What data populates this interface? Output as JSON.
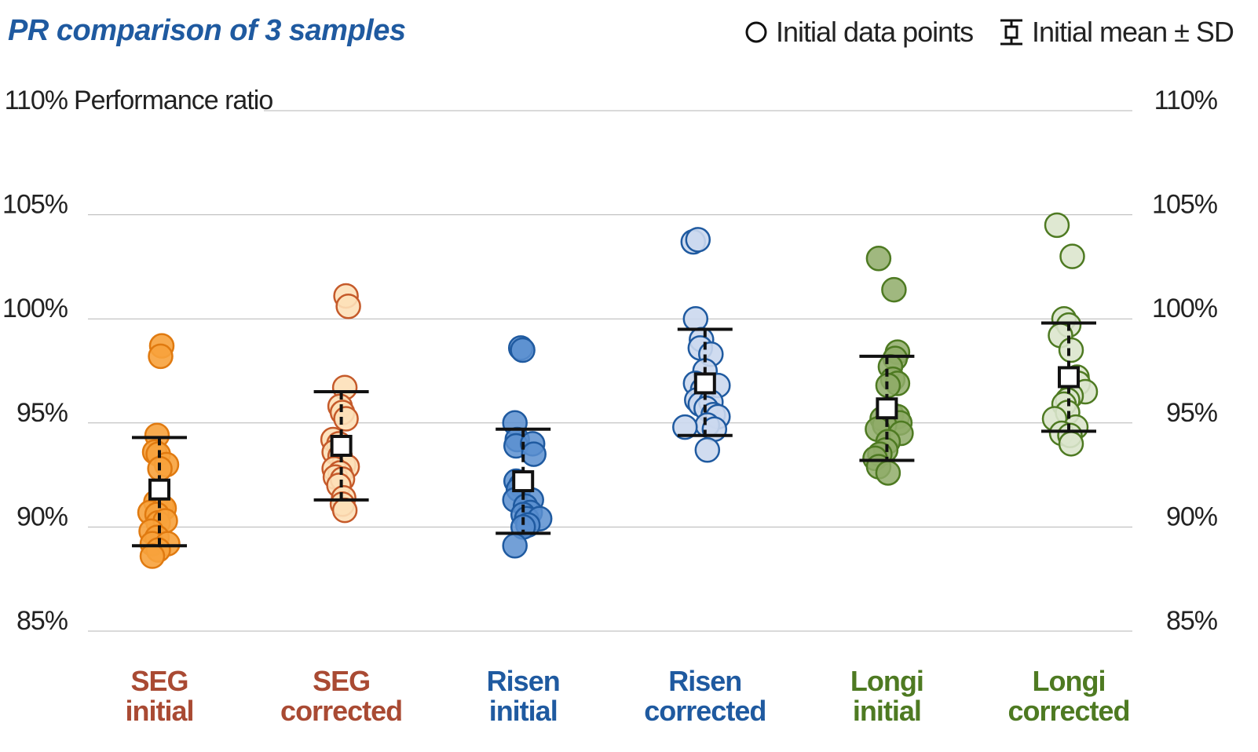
{
  "chart_data": {
    "type": "scatter",
    "title": "PR comparison of 3 samples",
    "ylabel": "Performance ratio",
    "ylim": [
      85,
      110
    ],
    "yticks": [
      {
        "value": 110,
        "label": "110%"
      },
      {
        "value": 105,
        "label": "105%"
      },
      {
        "value": 100,
        "label": "100%"
      },
      {
        "value": 95,
        "label": "95%"
      },
      {
        "value": 90,
        "label": "90%"
      },
      {
        "value": 85,
        "label": "85%"
      }
    ],
    "grid": true,
    "legend_position": "top-right",
    "legend": {
      "points_label": "Initial data points",
      "mean_label": "Initial mean ± SD"
    },
    "series": [
      {
        "label_line1": "SEG",
        "label_line2": "initial",
        "stroke": "#e07a10",
        "fill": "#f7a23c",
        "fill_opacity": 0.9,
        "text_color": "#a94a33",
        "mean": 91.8,
        "sd_upper": 94.3,
        "sd_lower": 89.1,
        "points": [
          {
            "dx": 0.1,
            "y": 98.7
          },
          {
            "dx": 0.05,
            "y": 98.2
          },
          {
            "dx": -0.1,
            "y": 94.4
          },
          {
            "dx": -0.2,
            "y": 93.6
          },
          {
            "dx": -0.05,
            "y": 93.5
          },
          {
            "dx": 0.3,
            "y": 93.0
          },
          {
            "dx": 0.02,
            "y": 92.8
          },
          {
            "dx": -0.15,
            "y": 91.2
          },
          {
            "dx": 0.1,
            "y": 91.0
          },
          {
            "dx": 0.2,
            "y": 90.9
          },
          {
            "dx": -0.4,
            "y": 90.7
          },
          {
            "dx": -0.1,
            "y": 90.6
          },
          {
            "dx": -0.05,
            "y": 90.2
          },
          {
            "dx": 0.25,
            "y": 90.3
          },
          {
            "dx": -0.35,
            "y": 89.8
          },
          {
            "dx": -0.1,
            "y": 89.5
          },
          {
            "dx": -0.3,
            "y": 89.2
          },
          {
            "dx": 0.35,
            "y": 89.2
          },
          {
            "dx": -0.05,
            "y": 88.9
          },
          {
            "dx": -0.3,
            "y": 88.6
          }
        ]
      },
      {
        "label_line1": "SEG",
        "label_line2": "corrected",
        "stroke": "#c55a2a",
        "fill": "#fde0b8",
        "fill_opacity": 0.9,
        "text_color": "#a94a33",
        "mean": 93.9,
        "sd_upper": 96.5,
        "sd_lower": 91.3,
        "points": [
          {
            "dx": 0.2,
            "y": 101.1
          },
          {
            "dx": 0.3,
            "y": 100.6
          },
          {
            "dx": 0.15,
            "y": 96.7
          },
          {
            "dx": -0.05,
            "y": 95.8
          },
          {
            "dx": 0.05,
            "y": 95.5
          },
          {
            "dx": 0.2,
            "y": 95.2
          },
          {
            "dx": -0.35,
            "y": 94.2
          },
          {
            "dx": -0.1,
            "y": 94.0
          },
          {
            "dx": -0.3,
            "y": 93.6
          },
          {
            "dx": -0.05,
            "y": 93.4
          },
          {
            "dx": 0.1,
            "y": 93.0
          },
          {
            "dx": 0.25,
            "y": 92.9
          },
          {
            "dx": -0.3,
            "y": 92.8
          },
          {
            "dx": -0.05,
            "y": 92.6
          },
          {
            "dx": -0.25,
            "y": 92.4
          },
          {
            "dx": 0.05,
            "y": 92.3
          },
          {
            "dx": -0.1,
            "y": 92.0
          },
          {
            "dx": 0.1,
            "y": 91.4
          },
          {
            "dx": 0.05,
            "y": 91.1
          },
          {
            "dx": 0.15,
            "y": 90.8
          }
        ]
      },
      {
        "label_line1": "Risen",
        "label_line2": "initial",
        "stroke": "#1f5aa0",
        "fill": "#5b8fd0",
        "fill_opacity": 0.85,
        "text_color": "#1f5aa0",
        "mean": 92.2,
        "sd_upper": 94.7,
        "sd_lower": 89.7,
        "points": [
          {
            "dx": -0.1,
            "y": 98.6
          },
          {
            "dx": -0.02,
            "y": 98.5
          },
          {
            "dx": -0.35,
            "y": 95.0
          },
          {
            "dx": -0.25,
            "y": 94.2
          },
          {
            "dx": -0.3,
            "y": 93.9
          },
          {
            "dx": 0.4,
            "y": 94.0
          },
          {
            "dx": 0.45,
            "y": 93.5
          },
          {
            "dx": -0.3,
            "y": 92.2
          },
          {
            "dx": -0.1,
            "y": 92.0
          },
          {
            "dx": -0.2,
            "y": 91.8
          },
          {
            "dx": 0.35,
            "y": 91.3
          },
          {
            "dx": -0.35,
            "y": 91.3
          },
          {
            "dx": 0.1,
            "y": 91.0
          },
          {
            "dx": 0.3,
            "y": 90.7
          },
          {
            "dx": 0.0,
            "y": 90.6
          },
          {
            "dx": 0.15,
            "y": 90.4
          },
          {
            "dx": 0.7,
            "y": 90.4
          },
          {
            "dx": 0.2,
            "y": 90.1
          },
          {
            "dx": 0.0,
            "y": 90.0
          },
          {
            "dx": -0.35,
            "y": 89.1
          }
        ]
      },
      {
        "label_line1": "Risen",
        "label_line2": "corrected",
        "stroke": "#1f5aa0",
        "fill": "#cbd8ee",
        "fill_opacity": 0.9,
        "text_color": "#1f5aa0",
        "mean": 96.9,
        "sd_upper": 99.5,
        "sd_lower": 94.4,
        "points": [
          {
            "dx": -0.5,
            "y": 103.7
          },
          {
            "dx": -0.3,
            "y": 103.8
          },
          {
            "dx": -0.4,
            "y": 100.0
          },
          {
            "dx": -0.15,
            "y": 99.0
          },
          {
            "dx": -0.2,
            "y": 98.6
          },
          {
            "dx": 0.25,
            "y": 98.3
          },
          {
            "dx": 0.0,
            "y": 97.5
          },
          {
            "dx": -0.4,
            "y": 96.9
          },
          {
            "dx": 0.55,
            "y": 96.8
          },
          {
            "dx": -0.1,
            "y": 96.6
          },
          {
            "dx": -0.35,
            "y": 96.1
          },
          {
            "dx": -0.2,
            "y": 95.9
          },
          {
            "dx": 0.25,
            "y": 96.0
          },
          {
            "dx": 0.05,
            "y": 95.7
          },
          {
            "dx": 0.35,
            "y": 95.4
          },
          {
            "dx": 0.55,
            "y": 95.3
          },
          {
            "dx": 0.1,
            "y": 94.9
          },
          {
            "dx": 0.4,
            "y": 94.7
          },
          {
            "dx": -0.85,
            "y": 94.8
          },
          {
            "dx": 0.1,
            "y": 93.7
          }
        ]
      },
      {
        "label_line1": "Longi",
        "label_line2": "initial",
        "stroke": "#4e7a22",
        "fill": "#8fab68",
        "fill_opacity": 0.85,
        "text_color": "#4e7a22",
        "mean": 95.7,
        "sd_upper": 98.2,
        "sd_lower": 93.2,
        "points": [
          {
            "dx": -0.35,
            "y": 102.9
          },
          {
            "dx": 0.3,
            "y": 101.4
          },
          {
            "dx": 0.45,
            "y": 98.4
          },
          {
            "dx": 0.35,
            "y": 98.1
          },
          {
            "dx": 0.15,
            "y": 97.7
          },
          {
            "dx": 0.25,
            "y": 97.1
          },
          {
            "dx": 0.45,
            "y": 96.9
          },
          {
            "dx": 0.05,
            "y": 96.8
          },
          {
            "dx": 0.2,
            "y": 95.4
          },
          {
            "dx": 0.45,
            "y": 95.3
          },
          {
            "dx": -0.2,
            "y": 95.2
          },
          {
            "dx": 0.55,
            "y": 95.0
          },
          {
            "dx": -0.1,
            "y": 94.9
          },
          {
            "dx": -0.4,
            "y": 94.7
          },
          {
            "dx": 0.6,
            "y": 94.5
          },
          {
            "dx": 0.05,
            "y": 94.1
          },
          {
            "dx": -0.05,
            "y": 93.7
          },
          {
            "dx": -0.3,
            "y": 93.5
          },
          {
            "dx": -0.5,
            "y": 93.3
          },
          {
            "dx": -0.35,
            "y": 92.9
          },
          {
            "dx": 0.05,
            "y": 92.6
          }
        ]
      },
      {
        "label_line1": "Longi",
        "label_line2": "corrected",
        "stroke": "#4e7a22",
        "fill": "#dbe5cd",
        "fill_opacity": 0.9,
        "text_color": "#4e7a22",
        "mean": 97.2,
        "sd_upper": 99.8,
        "sd_lower": 94.6,
        "points": [
          {
            "dx": -0.5,
            "y": 104.5
          },
          {
            "dx": 0.15,
            "y": 103.0
          },
          {
            "dx": -0.2,
            "y": 100.0
          },
          {
            "dx": 0.0,
            "y": 99.7
          },
          {
            "dx": -0.35,
            "y": 99.2
          },
          {
            "dx": 0.1,
            "y": 98.5
          },
          {
            "dx": 0.35,
            "y": 97.2
          },
          {
            "dx": 0.4,
            "y": 96.9
          },
          {
            "dx": 0.7,
            "y": 96.5
          },
          {
            "dx": 0.1,
            "y": 96.3
          },
          {
            "dx": -0.05,
            "y": 96.1
          },
          {
            "dx": -0.2,
            "y": 95.9
          },
          {
            "dx": -0.05,
            "y": 95.5
          },
          {
            "dx": -0.6,
            "y": 95.2
          },
          {
            "dx": 0.3,
            "y": 94.8
          },
          {
            "dx": -0.3,
            "y": 94.5
          },
          {
            "dx": 0.05,
            "y": 94.4
          },
          {
            "dx": 0.1,
            "y": 94.0
          }
        ]
      }
    ]
  }
}
